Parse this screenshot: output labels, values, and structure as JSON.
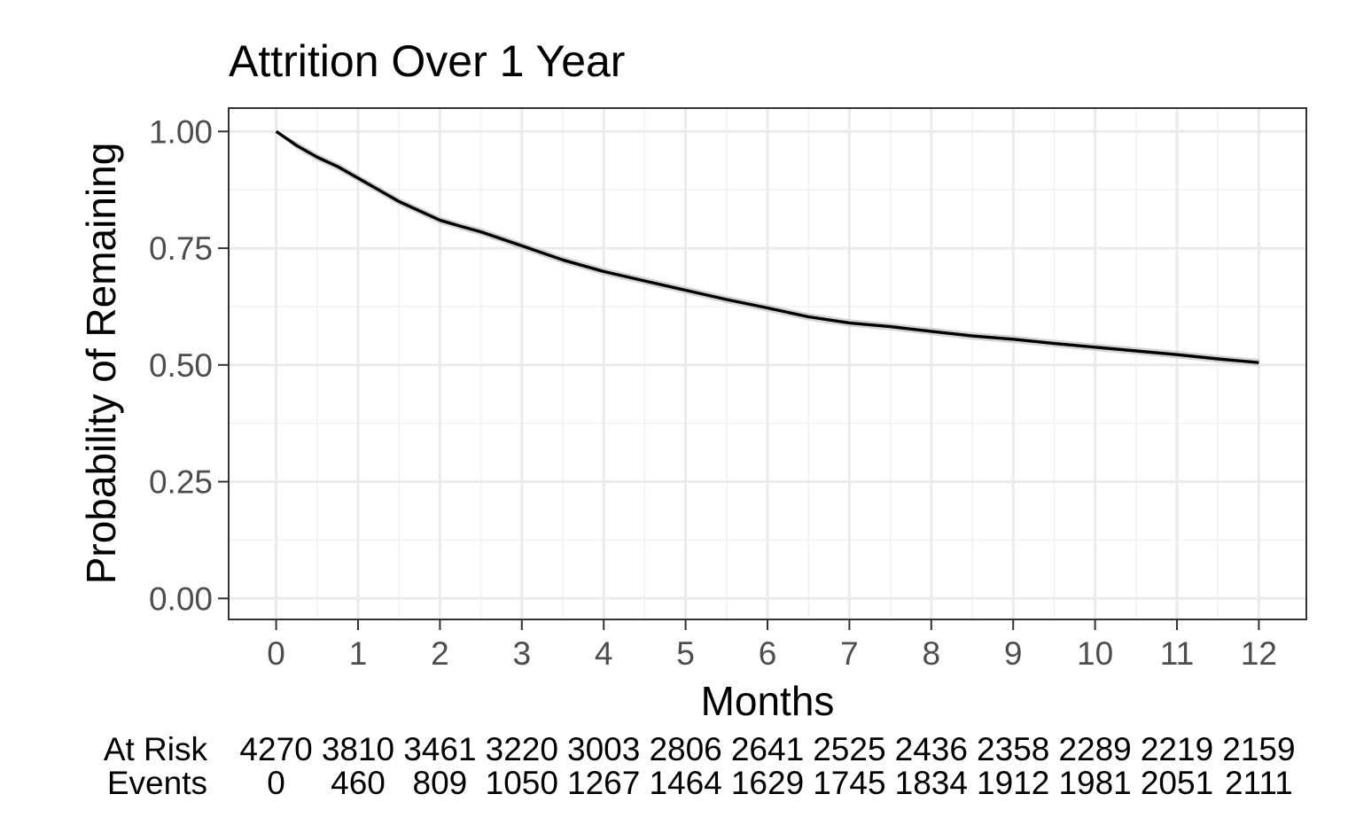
{
  "chart_data": {
    "type": "line",
    "title": "Attrition Over 1 Year",
    "xlabel": "Months",
    "ylabel": "Probability of Remaining",
    "xlim": [
      -0.58,
      12.58
    ],
    "ylim": [
      -0.045,
      1.05
    ],
    "x_ticks": [
      "0",
      "1",
      "2",
      "3",
      "4",
      "5",
      "6",
      "7",
      "8",
      "9",
      "10",
      "11",
      "12"
    ],
    "y_ticks": [
      "0.00",
      "0.25",
      "0.50",
      "0.75",
      "1.00"
    ],
    "y_tick_values": [
      0,
      0.25,
      0.5,
      0.75,
      1.0
    ],
    "grid": true,
    "series": [
      {
        "x": [
          0,
          0.25,
          0.5,
          0.75,
          1,
          1.25,
          1.5,
          1.75,
          2,
          2.25,
          2.5,
          2.75,
          3,
          3.5,
          4,
          4.5,
          5,
          5.5,
          6,
          6.5,
          7,
          7.5,
          8,
          8.5,
          9,
          9.5,
          10,
          10.5,
          11,
          11.5,
          12
        ],
        "y": [
          1.0,
          0.97,
          0.945,
          0.925,
          0.9,
          0.875,
          0.85,
          0.83,
          0.81,
          0.797,
          0.785,
          0.77,
          0.755,
          0.725,
          0.7,
          0.68,
          0.66,
          0.64,
          0.622,
          0.603,
          0.59,
          0.582,
          0.572,
          0.562,
          0.555,
          0.546,
          0.538,
          0.53,
          0.522,
          0.513,
          0.505
        ],
        "ci_halfwidth": 0.008,
        "color": "#000000"
      }
    ],
    "risk_table": {
      "row_labels": [
        "At Risk",
        "Events"
      ],
      "at_risk": [
        "4270",
        "3810",
        "3461",
        "3220",
        "3003",
        "2806",
        "2641",
        "2525",
        "2436",
        "2358",
        "2289",
        "2219",
        "2159"
      ],
      "events": [
        "0",
        "460",
        "809",
        "1050",
        "1267",
        "1464",
        "1629",
        "1745",
        "1834",
        "1912",
        "1981",
        "2051",
        "2111"
      ]
    }
  }
}
